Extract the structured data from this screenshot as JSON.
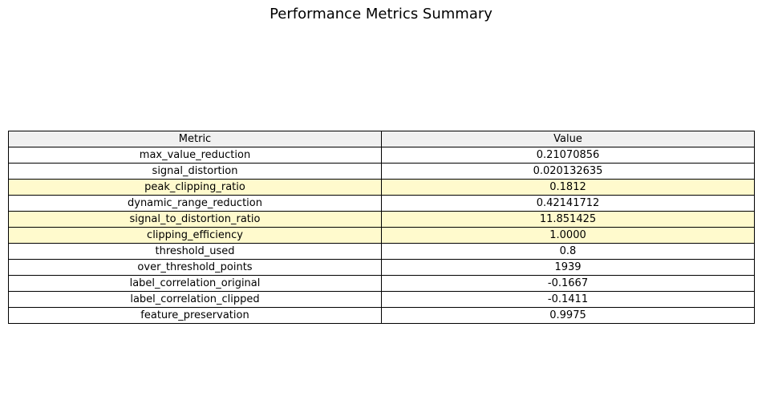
{
  "chart_data": {
    "type": "table",
    "title": "Performance Metrics Summary",
    "columns": [
      "Metric",
      "Value"
    ],
    "rows": [
      {
        "metric": "max_value_reduction",
        "value": "0.21070856",
        "highlight": false
      },
      {
        "metric": "signal_distortion",
        "value": "0.020132635",
        "highlight": false
      },
      {
        "metric": "peak_clipping_ratio",
        "value": "0.1812",
        "highlight": true
      },
      {
        "metric": "dynamic_range_reduction",
        "value": "0.42141712",
        "highlight": false
      },
      {
        "metric": "signal_to_distortion_ratio",
        "value": "11.851425",
        "highlight": true
      },
      {
        "metric": "clipping_efficiency",
        "value": "1.0000",
        "highlight": true
      },
      {
        "metric": "threshold_used",
        "value": "0.8",
        "highlight": false
      },
      {
        "metric": "over_threshold_points",
        "value": "1939",
        "highlight": false
      },
      {
        "metric": "label_correlation_original",
        "value": "-0.1667",
        "highlight": false
      },
      {
        "metric": "label_correlation_clipped",
        "value": "-0.1411",
        "highlight": false
      },
      {
        "metric": "feature_preservation",
        "value": "0.9975",
        "highlight": false
      }
    ],
    "colors": {
      "header_background": "#f0f0f0",
      "highlight_background": "#fffacd",
      "cell_background": "#ffffff",
      "border": "#000000"
    }
  }
}
